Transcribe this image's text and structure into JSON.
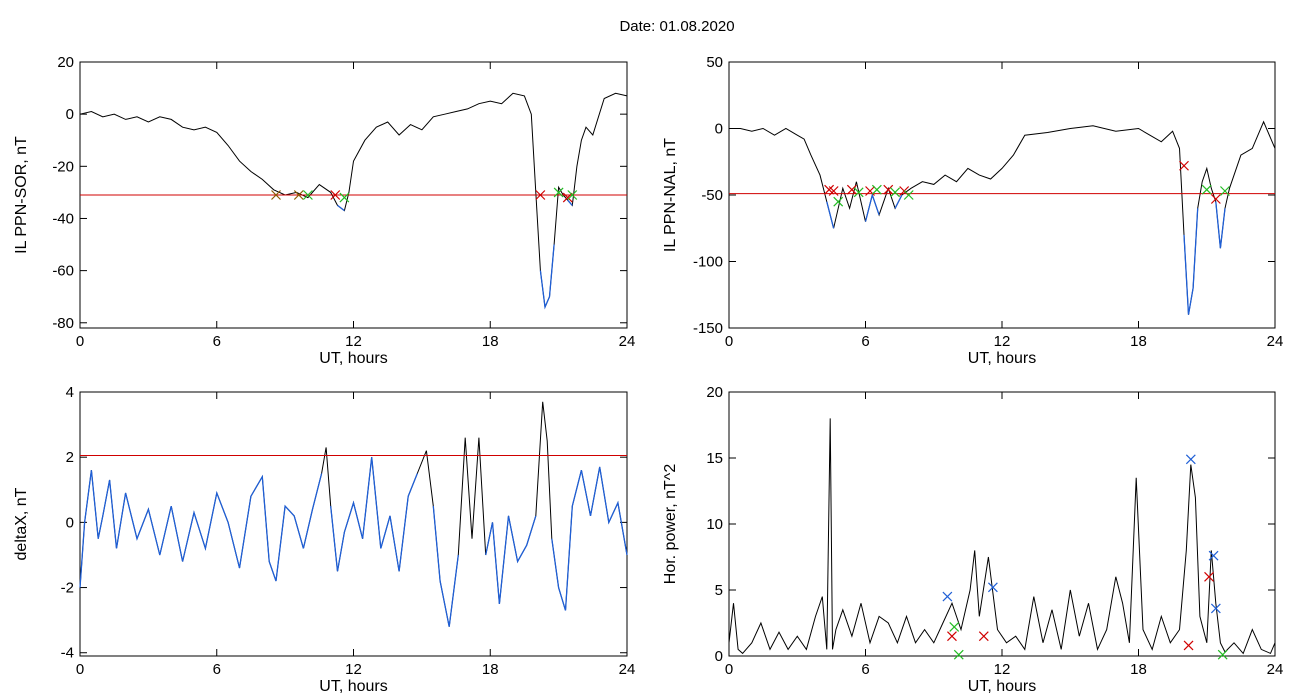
{
  "page_title": "Date:  01.08.2020",
  "colors": {
    "trace": "#000000",
    "threshold": "#d00000",
    "below_threshold": "#1f5fd6",
    "cross_red": "#d00000",
    "cross_green": "#22bb22",
    "cross_blue": "#1f5fd6",
    "cross_brown": "#8a5a00"
  },
  "chart_data": [
    {
      "id": "ppn-sor",
      "type": "line",
      "title": "",
      "xlabel": "UT, hours",
      "ylabel": "IL PPN-SOR, nT",
      "xlim": [
        0,
        24
      ],
      "ylim": [
        -82,
        20
      ],
      "xticks": [
        0,
        6,
        12,
        18,
        24
      ],
      "yticks": [
        20,
        0,
        -20,
        -40,
        -60,
        -80
      ],
      "threshold": -31,
      "series": [
        {
          "x": [
            0,
            0.5,
            1,
            1.5,
            2,
            2.5,
            3,
            3.5,
            4,
            4.5,
            5,
            5.5,
            6,
            6.5,
            7,
            7.5,
            8,
            8.5,
            9,
            9.5,
            10,
            10.5,
            11,
            11.3,
            11.6,
            11.8,
            12,
            12.5,
            13,
            13.5,
            14,
            14.5,
            15,
            15.5,
            16,
            16.5,
            17,
            17.5,
            18,
            18.5,
            19,
            19.5,
            19.8,
            20,
            20.2,
            20.4,
            20.6,
            20.8,
            21,
            21.2,
            21.4,
            21.6,
            21.8,
            22,
            22.2,
            22.5,
            23,
            23.5,
            24
          ],
          "y": [
            0,
            1,
            -1,
            0,
            -2,
            -1,
            -3,
            -1,
            -2,
            -5,
            -6,
            -5,
            -7,
            -12,
            -18,
            -22,
            -25,
            -29,
            -31,
            -30,
            -32,
            -27,
            -30,
            -35,
            -37,
            -30,
            -18,
            -10,
            -5,
            -3,
            -8,
            -4,
            -6,
            -1,
            0,
            1,
            2,
            4,
            5,
            4,
            8,
            7,
            0,
            -30,
            -60,
            -74,
            -70,
            -50,
            -28,
            -31,
            -33,
            -35,
            -20,
            -10,
            -5,
            -8,
            6,
            8,
            7
          ]
        }
      ],
      "markers": [
        {
          "x": 8.6,
          "y": -31,
          "color": "cross_brown"
        },
        {
          "x": 9.6,
          "y": -31,
          "color": "cross_brown"
        },
        {
          "x": 10.0,
          "y": -31,
          "color": "cross_green"
        },
        {
          "x": 11.2,
          "y": -31,
          "color": "cross_red"
        },
        {
          "x": 11.6,
          "y": -32,
          "color": "cross_green"
        },
        {
          "x": 20.2,
          "y": -31,
          "color": "cross_red"
        },
        {
          "x": 21.0,
          "y": -30,
          "color": "cross_green"
        },
        {
          "x": 21.4,
          "y": -32,
          "color": "cross_red"
        },
        {
          "x": 21.6,
          "y": -31,
          "color": "cross_green"
        }
      ]
    },
    {
      "id": "ppn-nal",
      "type": "line",
      "title": "",
      "xlabel": "UT, hours",
      "ylabel": "IL PPN-NAL, nT",
      "xlim": [
        0,
        24
      ],
      "ylim": [
        -150,
        50
      ],
      "xticks": [
        0,
        6,
        12,
        18,
        24
      ],
      "yticks": [
        50,
        0,
        -50,
        -100,
        -150
      ],
      "threshold": -49,
      "series": [
        {
          "x": [
            0,
            0.5,
            1,
            1.5,
            2,
            2.5,
            3,
            3.3,
            3.6,
            4,
            4.3,
            4.6,
            5,
            5.3,
            5.6,
            6,
            6.3,
            6.6,
            7,
            7.3,
            7.6,
            8,
            8.5,
            9,
            9.5,
            10,
            10.5,
            11,
            11.5,
            12,
            12.5,
            13,
            14,
            15,
            16,
            17,
            18,
            18.5,
            19,
            19.5,
            19.8,
            20,
            20.2,
            20.4,
            20.6,
            20.8,
            21,
            21.2,
            21.4,
            21.6,
            21.8,
            22,
            22.5,
            23,
            23.5,
            24
          ],
          "y": [
            0,
            0,
            -2,
            0,
            -5,
            0,
            -5,
            -8,
            -20,
            -35,
            -55,
            -75,
            -45,
            -60,
            -40,
            -70,
            -50,
            -65,
            -45,
            -60,
            -50,
            -45,
            -40,
            -42,
            -35,
            -40,
            -30,
            -35,
            -38,
            -30,
            -20,
            -5,
            -3,
            0,
            2,
            -2,
            0,
            -5,
            -10,
            -2,
            -15,
            -80,
            -140,
            -120,
            -60,
            -40,
            -30,
            -45,
            -55,
            -90,
            -60,
            -45,
            -20,
            -15,
            5,
            -15
          ]
        }
      ],
      "markers": [
        {
          "x": 4.4,
          "y": -46,
          "color": "cross_red"
        },
        {
          "x": 4.6,
          "y": -47,
          "color": "cross_red"
        },
        {
          "x": 4.8,
          "y": -55,
          "color": "cross_green"
        },
        {
          "x": 5.4,
          "y": -46,
          "color": "cross_red"
        },
        {
          "x": 5.7,
          "y": -48,
          "color": "cross_green"
        },
        {
          "x": 6.2,
          "y": -47,
          "color": "cross_red"
        },
        {
          "x": 6.5,
          "y": -46,
          "color": "cross_green"
        },
        {
          "x": 7.0,
          "y": -46,
          "color": "cross_red"
        },
        {
          "x": 7.3,
          "y": -48,
          "color": "cross_green"
        },
        {
          "x": 7.7,
          "y": -47,
          "color": "cross_red"
        },
        {
          "x": 7.9,
          "y": -50,
          "color": "cross_green"
        },
        {
          "x": 20.0,
          "y": -28,
          "color": "cross_red"
        },
        {
          "x": 21.0,
          "y": -46,
          "color": "cross_green"
        },
        {
          "x": 21.4,
          "y": -53,
          "color": "cross_red"
        },
        {
          "x": 21.8,
          "y": -47,
          "color": "cross_green"
        }
      ]
    },
    {
      "id": "deltax",
      "type": "line",
      "title": "",
      "xlabel": "UT, hours",
      "ylabel": "deltaX, nT",
      "xlim": [
        0,
        24
      ],
      "ylim": [
        -4.1,
        4
      ],
      "xticks": [
        0,
        6,
        12,
        18,
        24
      ],
      "yticks": [
        4,
        2,
        0,
        -2,
        -4
      ],
      "threshold": 2.05,
      "series": [
        {
          "x": [
            0,
            0.2,
            0.5,
            0.8,
            1,
            1.3,
            1.6,
            2,
            2.5,
            3,
            3.5,
            4,
            4.5,
            5,
            5.5,
            6,
            6.5,
            7,
            7.5,
            8,
            8.3,
            8.6,
            9,
            9.4,
            9.8,
            10.2,
            10.6,
            10.8,
            11,
            11.3,
            11.6,
            12,
            12.4,
            12.8,
            13.2,
            13.6,
            14,
            14.4,
            14.8,
            15.2,
            15.5,
            15.8,
            16.2,
            16.6,
            16.9,
            17.2,
            17.5,
            17.8,
            18.1,
            18.4,
            18.8,
            19.2,
            19.6,
            20,
            20.3,
            20.5,
            20.7,
            21,
            21.3,
            21.6,
            22,
            22.4,
            22.8,
            23.2,
            23.6,
            24
          ],
          "y": [
            -2,
            0,
            1.6,
            -0.5,
            0.2,
            1.3,
            -0.8,
            0.9,
            -0.5,
            0.4,
            -1,
            0.5,
            -1.2,
            0.3,
            -0.8,
            0.9,
            0,
            -1.4,
            0.8,
            1.4,
            -1.2,
            -1.8,
            0.5,
            0.2,
            -0.8,
            0.4,
            1.5,
            2.3,
            0.5,
            -1.5,
            -0.3,
            0.6,
            -0.5,
            2,
            -0.8,
            0.2,
            -1.5,
            0.8,
            1.5,
            2.2,
            0.5,
            -1.8,
            -3.2,
            -1,
            2.6,
            -0.5,
            2.6,
            -1,
            0,
            -2.5,
            0.2,
            -1.2,
            -0.7,
            0.2,
            3.7,
            2.5,
            -0.5,
            -2,
            -2.7,
            0.5,
            1.6,
            0.2,
            1.7,
            0,
            0.6,
            -1
          ]
        }
      ],
      "markers": []
    },
    {
      "id": "hor-power",
      "type": "line",
      "title": "",
      "xlabel": "UT, hours",
      "ylabel": "Hor. power, nT^2",
      "xlim": [
        0,
        24
      ],
      "ylim": [
        0,
        20
      ],
      "xticks": [
        0,
        6,
        12,
        18,
        24
      ],
      "yticks": [
        20,
        15,
        10,
        5,
        0
      ],
      "threshold": null,
      "series": [
        {
          "x": [
            0,
            0.2,
            0.4,
            0.6,
            1,
            1.4,
            1.8,
            2.2,
            2.6,
            3,
            3.4,
            3.8,
            4.1,
            4.3,
            4.45,
            4.55,
            4.7,
            5,
            5.4,
            5.8,
            6.2,
            6.6,
            7,
            7.4,
            7.8,
            8.2,
            8.6,
            9,
            9.4,
            9.8,
            10.2,
            10.6,
            10.8,
            11,
            11.4,
            11.8,
            12.2,
            12.6,
            13,
            13.4,
            13.8,
            14.2,
            14.6,
            15,
            15.4,
            15.8,
            16.2,
            16.6,
            17,
            17.3,
            17.6,
            17.9,
            18.2,
            18.6,
            19,
            19.4,
            19.8,
            20.1,
            20.3,
            20.5,
            20.7,
            21,
            21.2,
            21.4,
            21.6,
            21.8,
            22.2,
            22.6,
            23,
            23.4,
            23.8,
            24
          ],
          "y": [
            1,
            4,
            0.5,
            0.2,
            1,
            2.5,
            0.5,
            1.8,
            0.5,
            1.5,
            0.5,
            3,
            4.5,
            0.5,
            18,
            0.5,
            2,
            3.5,
            1.5,
            4,
            1,
            3,
            2.5,
            1,
            3,
            1,
            2,
            1,
            2.5,
            4,
            2,
            5,
            8,
            3,
            7.5,
            2,
            1,
            1.5,
            0.5,
            4.5,
            1,
            3.5,
            0.5,
            5,
            1.5,
            4,
            0.5,
            2,
            6,
            4,
            1,
            13.5,
            2,
            0.5,
            3,
            1,
            2,
            8,
            14.5,
            12,
            3,
            1,
            8,
            4,
            1,
            0.3,
            1,
            0.2,
            2,
            0.5,
            0.2,
            1
          ]
        }
      ],
      "markers": [
        {
          "x": 9.6,
          "y": 4.5,
          "color": "cross_blue"
        },
        {
          "x": 9.8,
          "y": 1.5,
          "color": "cross_red"
        },
        {
          "x": 9.9,
          "y": 2.2,
          "color": "cross_green"
        },
        {
          "x": 10.1,
          "y": 0.1,
          "color": "cross_green"
        },
        {
          "x": 11.2,
          "y": 1.5,
          "color": "cross_red"
        },
        {
          "x": 11.6,
          "y": 5.2,
          "color": "cross_blue"
        },
        {
          "x": 20.3,
          "y": 14.9,
          "color": "cross_blue"
        },
        {
          "x": 20.2,
          "y": 0.8,
          "color": "cross_red"
        },
        {
          "x": 21.1,
          "y": 6.0,
          "color": "cross_red"
        },
        {
          "x": 21.3,
          "y": 7.6,
          "color": "cross_blue"
        },
        {
          "x": 21.4,
          "y": 3.6,
          "color": "cross_blue"
        },
        {
          "x": 21.7,
          "y": 0.1,
          "color": "cross_green"
        }
      ]
    }
  ]
}
